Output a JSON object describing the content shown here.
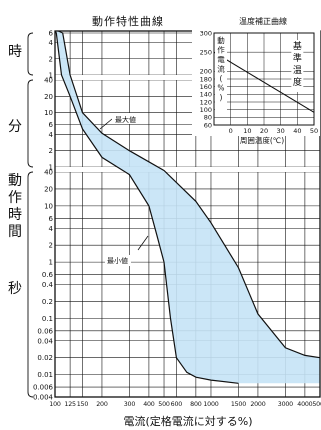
{
  "chart_data": [
    {
      "type": "area",
      "title": "動作特性曲線",
      "xlabel": "電流(定格電流に対する%)",
      "ylabel": "動作時間",
      "x_scale": "log",
      "y_scale": "log",
      "xlim": [
        100,
        5000
      ],
      "x_ticks": [
        "100",
        "125",
        "150",
        "200",
        "300",
        "400",
        "500",
        "600",
        "800",
        "1000",
        "1500",
        "2000",
        "3000",
        "4000",
        "5000"
      ],
      "y_groups": [
        {
          "unit": "時",
          "ticks": [
            "6",
            "4",
            "2",
            "1"
          ]
        },
        {
          "unit": "分",
          "ticks": [
            "40",
            "20",
            "10",
            "6",
            "4",
            "2",
            "1"
          ]
        },
        {
          "unit": "秒",
          "ticks": [
            "40",
            "20",
            "10",
            "6",
            "4",
            "2",
            "1",
            "0.6",
            "0.4",
            "0.2",
            "0.1",
            "0.06",
            "0.04",
            "0.02",
            "0.01",
            "0.006",
            "0.004"
          ]
        }
      ],
      "band_color": "#c5e3f6",
      "series": [
        {
          "name": "最大値",
          "points": [
            [
              105,
              90000
            ],
            [
              112,
              21600
            ],
            [
              125,
              3600
            ],
            [
              150,
              600
            ],
            [
              200,
              250
            ],
            [
              300,
              120
            ],
            [
              500,
              45
            ],
            [
              800,
              12
            ],
            [
              1000,
              5
            ],
            [
              1500,
              0.8
            ],
            [
              2000,
              0.12
            ],
            [
              3000,
              0.03
            ],
            [
              4000,
              0.022
            ],
            [
              5000,
              0.02
            ]
          ]
        },
        {
          "name": "最小値",
          "points": [
            [
              100,
              90000
            ],
            [
              102,
              21600
            ],
            [
              110,
              3600
            ],
            [
              125,
              1200
            ],
            [
              150,
              300
            ],
            [
              200,
              90
            ],
            [
              300,
              36
            ],
            [
              400,
              10
            ],
            [
              450,
              3
            ],
            [
              500,
              1
            ],
            [
              550,
              0.1
            ],
            [
              600,
              0.02
            ],
            [
              700,
              0.011
            ],
            [
              800,
              0.009
            ],
            [
              1000,
              0.008
            ],
            [
              1500,
              0.007
            ]
          ]
        }
      ]
    },
    {
      "type": "line",
      "title": "温度補正曲線",
      "xlabel": "周囲温度(℃)",
      "ylabel": "動作電流(%)",
      "xlim": [
        -10,
        50
      ],
      "ylim": [
        60,
        300
      ],
      "x_ticks": [
        "0",
        "10",
        "20",
        "30",
        "40",
        "50"
      ],
      "y_ticks": [
        "300",
        "250",
        "200",
        "180",
        "160",
        "140",
        "120",
        "100",
        "80",
        "60"
      ],
      "marker_label": "基準温度",
      "marker_x": 40,
      "series": [
        {
          "name": "",
          "points": [
            [
              -10,
              250
            ],
            [
              50,
              93
            ]
          ]
        }
      ]
    }
  ],
  "side_labels": {
    "hour": "時",
    "minute": "分",
    "time_label": "動作時間",
    "second": "秒"
  }
}
